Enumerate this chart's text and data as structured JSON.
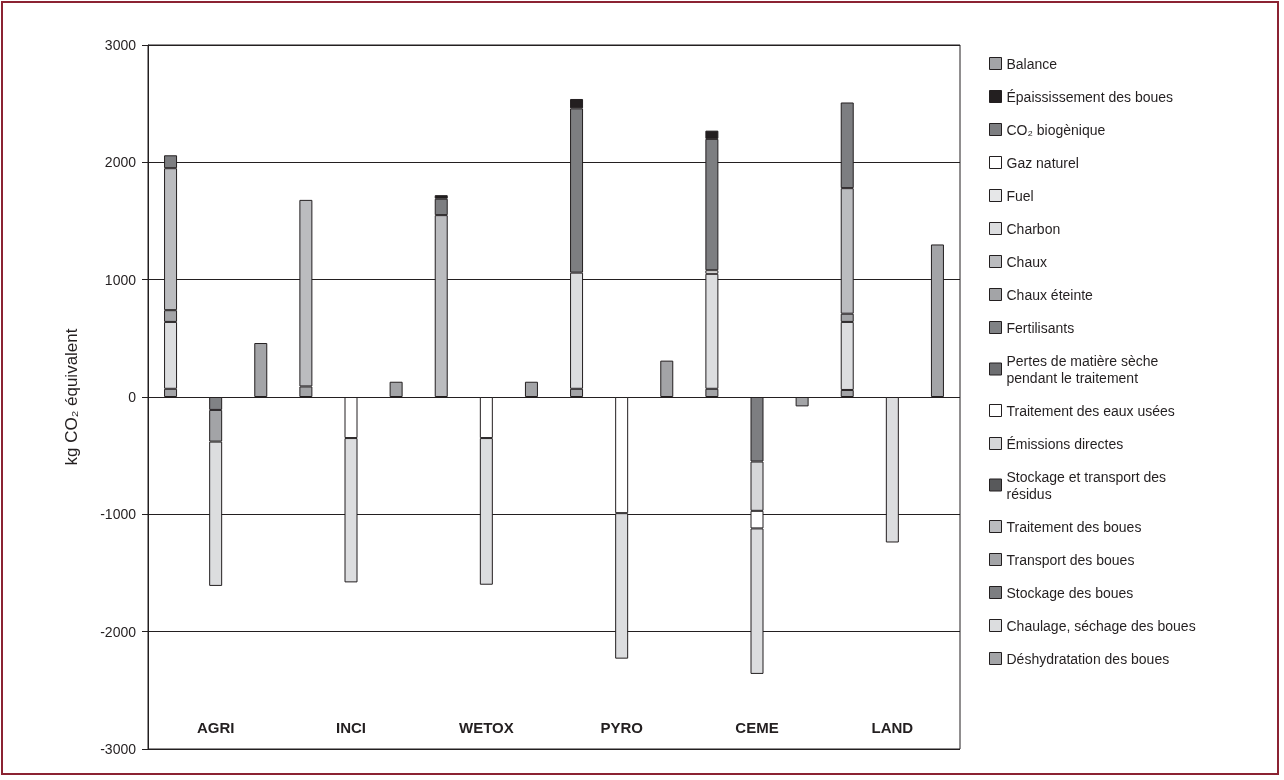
{
  "chart_data": {
    "type": "bar",
    "stacked": true,
    "ylabel": "kg CO₂ équivalent",
    "categories": [
      null,
      "AGRI",
      null,
      null,
      "INCI",
      null,
      null,
      "WETOX",
      null,
      null,
      "PYRO",
      null,
      null,
      "CEME",
      null,
      null,
      "LAND",
      null
    ],
    "ylim": [
      -3000,
      3000
    ],
    "yticks": [
      -3000,
      -2000,
      -1000,
      0,
      1000,
      2000,
      3000
    ],
    "grid": "y",
    "legend": "right",
    "series": [
      {
        "name": "Déshydratation des boues",
        "color": "#a3a4a7",
        "values": [
          70,
          null,
          null,
          90,
          null,
          null,
          null,
          null,
          null,
          70,
          null,
          null,
          70,
          null,
          null,
          60,
          null,
          null
        ]
      },
      {
        "name": "Chaulage, séchage des boues",
        "color": "#dcdddf",
        "values": [
          570,
          null,
          null,
          null,
          null,
          null,
          null,
          null,
          null,
          990,
          null,
          null,
          980,
          null,
          null,
          580,
          null,
          null
        ]
      },
      {
        "name": "Stockage des boues",
        "color": "#7d7e81",
        "values": [
          null,
          null,
          null,
          null,
          null,
          null,
          null,
          null,
          null,
          null,
          null,
          null,
          null,
          -550,
          null,
          null,
          null,
          null
        ]
      },
      {
        "name": "Transport des boues",
        "color": "#a3a4a7",
        "values": [
          100,
          null,
          null,
          null,
          null,
          null,
          null,
          null,
          null,
          null,
          null,
          null,
          null,
          null,
          null,
          70,
          null,
          null
        ]
      },
      {
        "name": "Traitement des boues",
        "color": "#bbbcbf",
        "values": [
          1210,
          null,
          null,
          1590,
          null,
          null,
          1550,
          null,
          null,
          null,
          null,
          null,
          null,
          null,
          null,
          1070,
          null,
          null
        ]
      },
      {
        "name": "Stockage et transport des résidus",
        "color": "#58595b",
        "values": [
          null,
          null,
          null,
          null,
          null,
          null,
          null,
          null,
          null,
          null,
          null,
          null,
          null,
          null,
          null,
          null,
          null,
          null
        ]
      },
      {
        "name": "Émissions directes",
        "color": "#d6d7d9",
        "values": [
          null,
          null,
          null,
          null,
          null,
          null,
          null,
          null,
          null,
          null,
          null,
          null,
          null,
          -420,
          null,
          null,
          null,
          null
        ]
      },
      {
        "name": "Traitement des eaux usées",
        "color": "#ffffff",
        "values": [
          null,
          null,
          null,
          null,
          -350,
          null,
          null,
          -350,
          null,
          null,
          -990,
          null,
          null,
          -150,
          null,
          null,
          null,
          null
        ]
      },
      {
        "name": "Pertes de matière sèche pendant le traitement",
        "color": "#6d6e71",
        "values": [
          null,
          null,
          null,
          null,
          null,
          null,
          null,
          null,
          null,
          null,
          null,
          null,
          null,
          null,
          null,
          null,
          null,
          null
        ]
      },
      {
        "name": "Fertilisants",
        "color": "#808285",
        "values": [
          null,
          -110,
          null,
          null,
          null,
          null,
          null,
          null,
          null,
          null,
          null,
          null,
          null,
          null,
          null,
          null,
          null,
          null
        ]
      },
      {
        "name": "Chaux éteinte",
        "color": "#a3a4a7",
        "values": [
          null,
          -270,
          null,
          null,
          null,
          null,
          null,
          null,
          null,
          null,
          null,
          null,
          null,
          null,
          null,
          null,
          null,
          null
        ]
      },
      {
        "name": "Chaux",
        "color": "#bbbcbf",
        "values": [
          null,
          null,
          null,
          null,
          null,
          null,
          null,
          null,
          null,
          null,
          null,
          null,
          null,
          null,
          null,
          null,
          null,
          null
        ]
      },
      {
        "name": "Charbon",
        "color": "#dcdddf",
        "values": [
          null,
          -1230,
          null,
          null,
          -1230,
          null,
          null,
          -1250,
          null,
          null,
          -1240,
          null,
          null,
          -1240,
          null,
          null,
          -1240,
          null
        ]
      },
      {
        "name": "Fuel",
        "color": "#e6e7e8",
        "values": [
          null,
          null,
          null,
          null,
          null,
          null,
          null,
          null,
          null,
          null,
          null,
          null,
          null,
          null,
          null,
          null,
          null,
          null
        ]
      },
      {
        "name": "Gaz naturel",
        "color": "#ffffff",
        "values": [
          null,
          null,
          null,
          null,
          null,
          null,
          null,
          null,
          null,
          null,
          null,
          null,
          30,
          null,
          null,
          null,
          null,
          null
        ]
      },
      {
        "name": "CO₂ biogènique",
        "color": "#7d7e81",
        "values": [
          110,
          null,
          null,
          null,
          null,
          null,
          140,
          null,
          null,
          1400,
          null,
          null,
          1120,
          null,
          null,
          730,
          null,
          null
        ]
      },
      {
        "name": "Épaississement des boues",
        "color": "#231f20",
        "values": [
          null,
          null,
          null,
          null,
          null,
          null,
          30,
          null,
          null,
          80,
          null,
          null,
          70,
          null,
          null,
          null,
          null,
          null
        ]
      },
      {
        "name": "Balance",
        "color": "#a3a4a7",
        "values": [
          null,
          null,
          460,
          null,
          null,
          130,
          null,
          null,
          130,
          null,
          null,
          310,
          null,
          null,
          -80,
          null,
          null,
          1300
        ]
      }
    ]
  }
}
